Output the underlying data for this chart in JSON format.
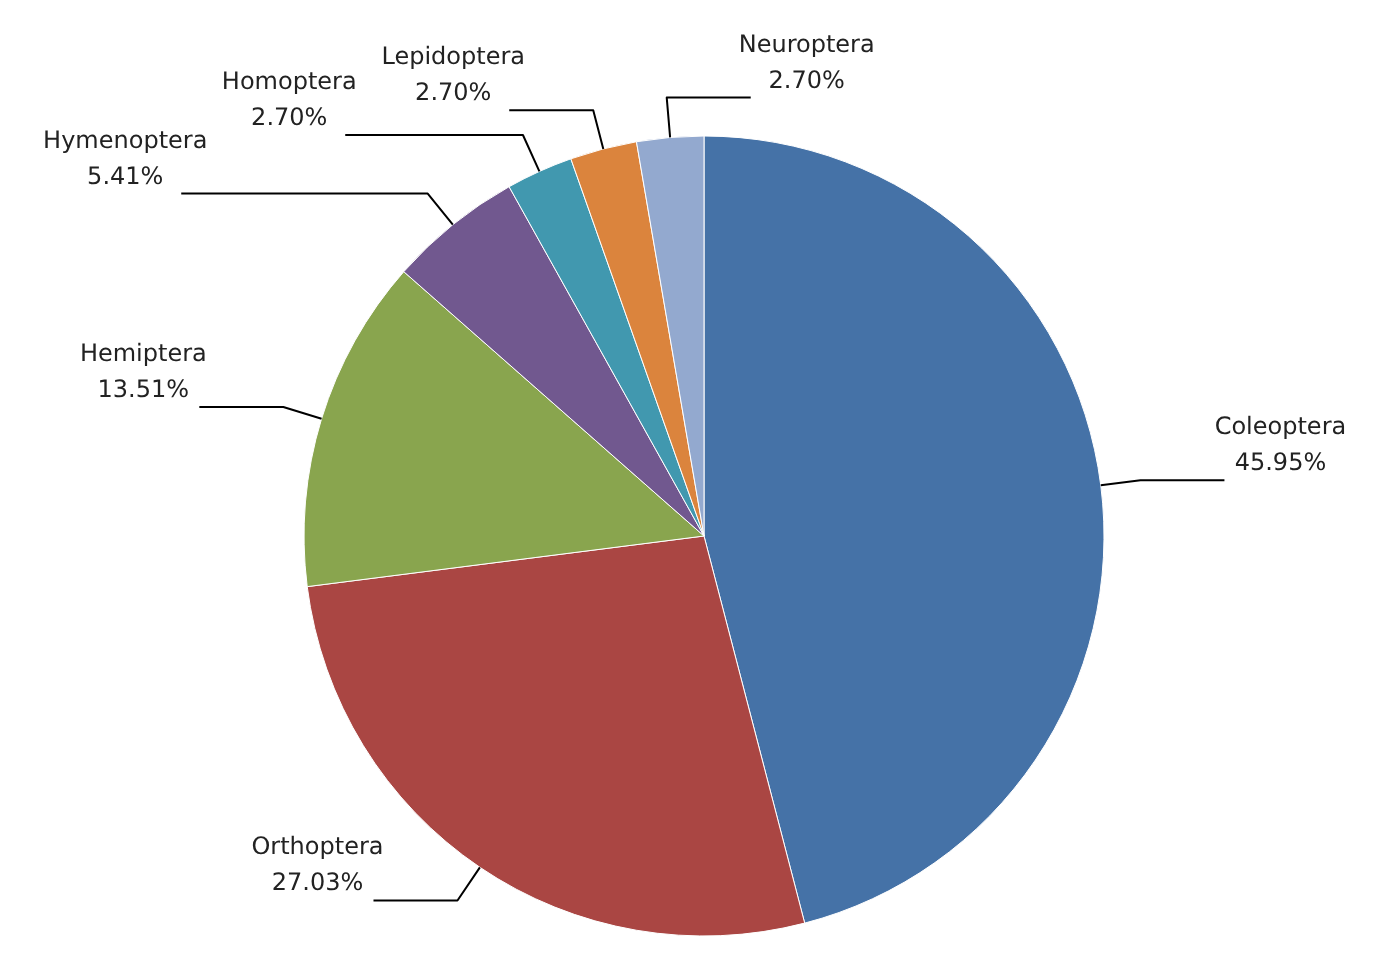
{
  "chart_data": {
    "type": "pie",
    "categories": [
      "Coleoptera",
      "Orthoptera",
      "Hemiptera",
      "Hymenoptera",
      "Homoptera",
      "Lepidoptera",
      "Neuroptera"
    ],
    "values": [
      45.95,
      27.03,
      13.51,
      5.41,
      2.7,
      2.7,
      2.7
    ],
    "value_labels": [
      "45.95%",
      "27.03%",
      "13.51%",
      "5.41%",
      "2.70%",
      "2.70%",
      "2.70%"
    ],
    "colors": [
      "#4572a7",
      "#aa4643",
      "#89a54e",
      "#71588f",
      "#4198af",
      "#db843d",
      "#93a9cf"
    ]
  }
}
